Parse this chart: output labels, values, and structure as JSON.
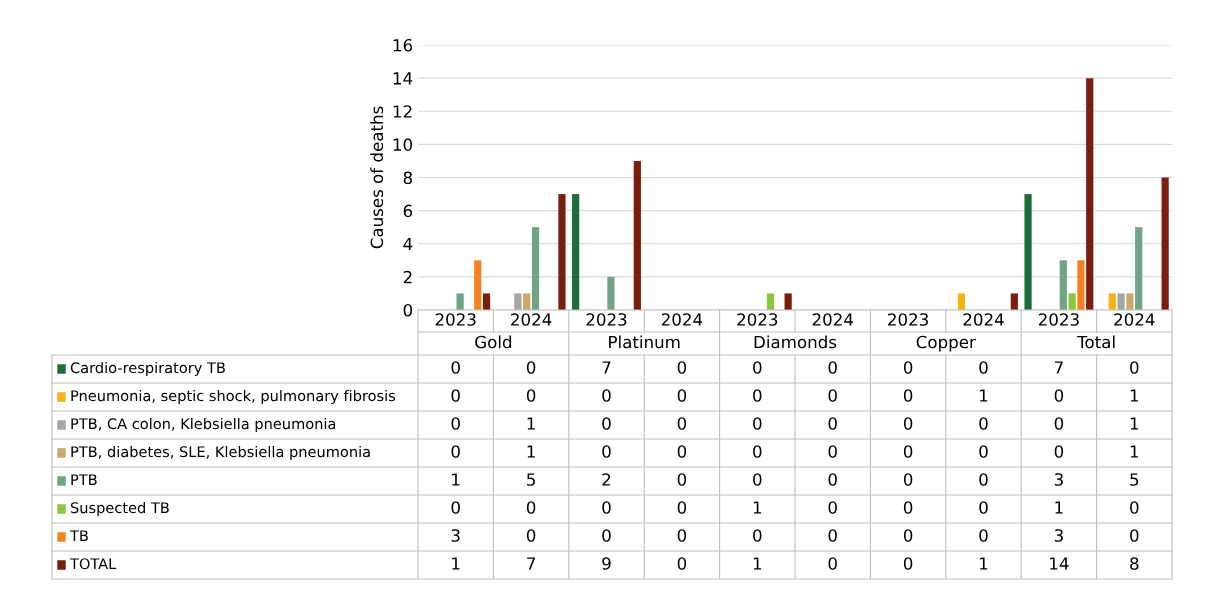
{
  "chart_data": {
    "type": "bar",
    "ylabel": "Causes of deaths",
    "categories": [
      "2023",
      "2024",
      "2023",
      "2024",
      "2023",
      "2024",
      "2023",
      "2024",
      "2023",
      "2024"
    ],
    "annotations": [
      "Gold",
      "Platinum",
      "Diamonds",
      "Copper",
      "Total"
    ],
    "series": [
      {
        "name": "Cardio-respiratory TB",
        "color": "#1e6b3a",
        "values": [
          0,
          0,
          7,
          0,
          0,
          0,
          0,
          0,
          7,
          0
        ]
      },
      {
        "name": "Pneumonia, septic shock, pulmonary fibrosis",
        "color": "#f5b214",
        "values": [
          0,
          0,
          0,
          0,
          0,
          0,
          0,
          1,
          0,
          1
        ]
      },
      {
        "name": "PTB, CA colon, Klebsiella pneumonia",
        "color": "#a5a5a5",
        "values": [
          0,
          1,
          0,
          0,
          0,
          0,
          0,
          0,
          0,
          1
        ]
      },
      {
        "name": "PTB, diabetes, SLE, Klebsiella pneumonia",
        "color": "#c8a96a",
        "values": [
          0,
          1,
          0,
          0,
          0,
          0,
          0,
          0,
          0,
          1
        ]
      },
      {
        "name": "PTB",
        "color": "#6fa585",
        "values": [
          1,
          5,
          2,
          0,
          0,
          0,
          0,
          0,
          3,
          5
        ]
      },
      {
        "name": "Suspected TB",
        "color": "#8dc63f",
        "values": [
          0,
          0,
          0,
          0,
          1,
          0,
          0,
          0,
          1,
          0
        ]
      },
      {
        "name": "TB",
        "color": "#f58220",
        "values": [
          3,
          0,
          0,
          0,
          0,
          0,
          0,
          0,
          3,
          0
        ]
      },
      {
        "name": "TOTAL",
        "color": "#7a1c0e",
        "values": [
          1,
          7,
          9,
          0,
          1,
          0,
          0,
          1,
          14,
          8
        ]
      }
    ],
    "ylim": [
      0,
      16
    ],
    "yticks": [
      0,
      2,
      4,
      6,
      8,
      10,
      12,
      14,
      16
    ],
    "grid": "y",
    "data_labels": true,
    "legend": "bottom left"
  }
}
